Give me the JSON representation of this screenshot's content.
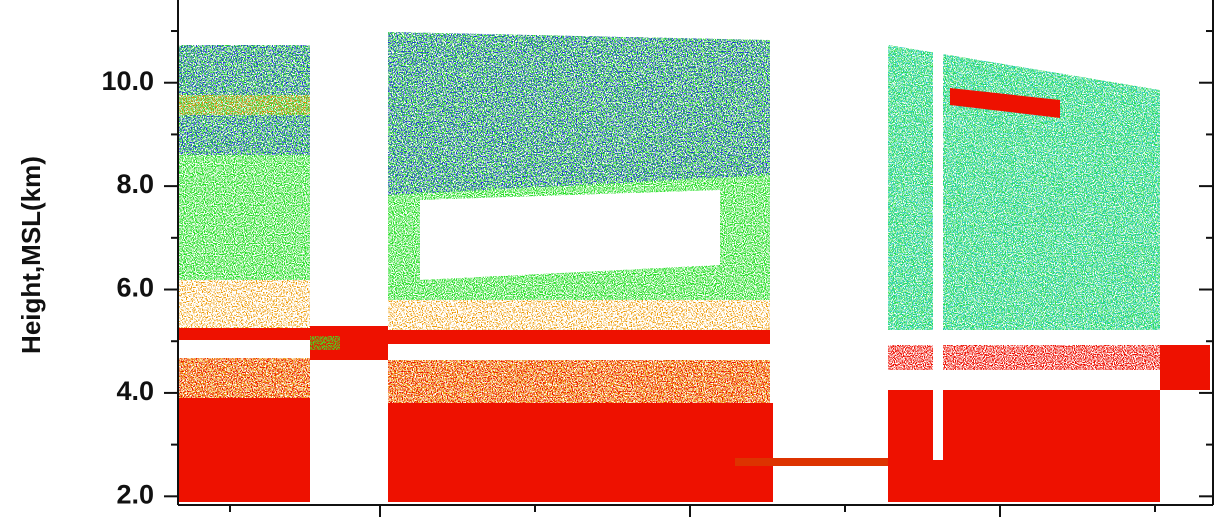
{
  "chart_data": {
    "type": "heatmap",
    "ylabel": "Height,MSL(km)",
    "ylim": [
      1.6,
      11.6
    ],
    "yticks": [
      {
        "value": 2,
        "label": "2.0"
      },
      {
        "value": 4,
        "label": "4.0"
      },
      {
        "value": 6,
        "label": "6.0"
      },
      {
        "value": 8,
        "label": "8.0"
      },
      {
        "value": 10,
        "label": "10.0"
      }
    ],
    "yminorticks": [
      3,
      5,
      7,
      9,
      11
    ]
  }
}
